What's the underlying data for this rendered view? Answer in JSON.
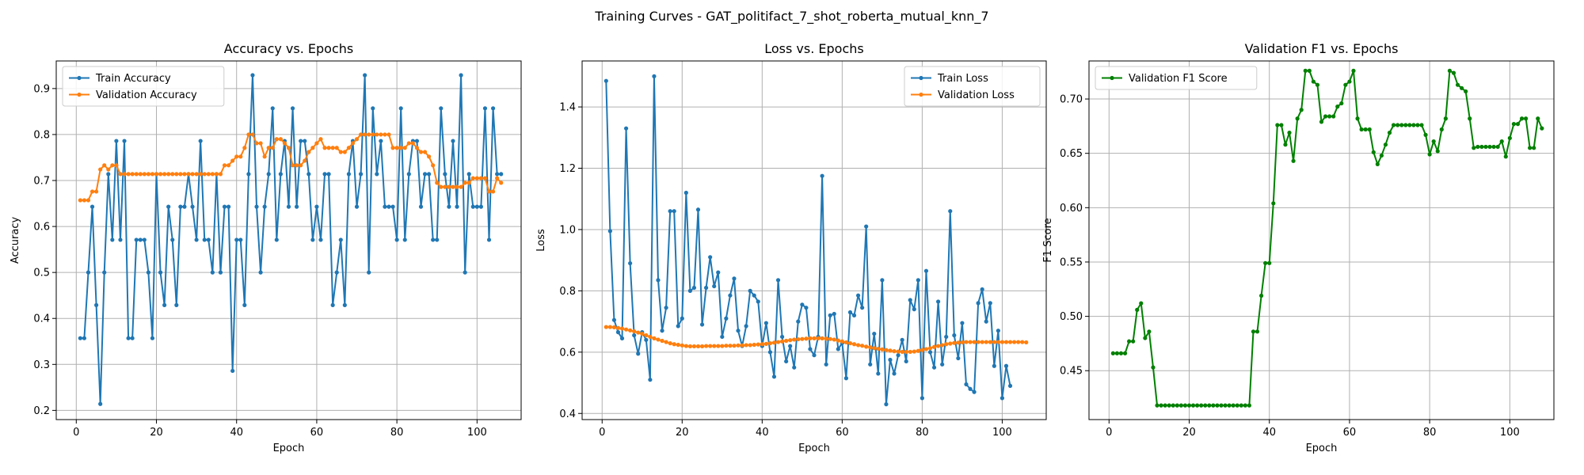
{
  "figure_title": "Training Curves - GAT_politifact_7_shot_roberta_mutual_knn_7",
  "colors": {
    "blue": "#1f77b4",
    "orange": "#ff7f0e",
    "green": "#008000",
    "grid": "#b0b0b0"
  },
  "chart_data": [
    {
      "type": "line",
      "title": "Accuracy vs. Epochs",
      "xlabel": "Epoch",
      "ylabel": "Accuracy",
      "xlim": [
        -5,
        111
      ],
      "ylim": [
        0.18,
        0.96
      ],
      "xticks": [
        0,
        20,
        40,
        60,
        80,
        100
      ],
      "yticks": [
        0.2,
        0.3,
        0.4,
        0.5,
        0.6,
        0.7,
        0.8,
        0.9
      ],
      "ytick_labels": [
        "0.2",
        "0.3",
        "0.4",
        "0.5",
        "0.6",
        "0.7",
        "0.8",
        "0.9"
      ],
      "grid": true,
      "legend": "upper left",
      "x_start": 1,
      "series": [
        {
          "name": "Train Accuracy",
          "color": "#1f77b4",
          "values": [
            0.357,
            0.357,
            0.5,
            0.643,
            0.429,
            0.214,
            0.5,
            0.714,
            0.571,
            0.786,
            0.571,
            0.786,
            0.357,
            0.357,
            0.571,
            0.571,
            0.571,
            0.5,
            0.357,
            0.714,
            0.5,
            0.429,
            0.643,
            0.571,
            0.429,
            0.643,
            0.643,
            0.714,
            0.643,
            0.571,
            0.786,
            0.571,
            0.571,
            0.5,
            0.714,
            0.5,
            0.643,
            0.643,
            0.286,
            0.571,
            0.571,
            0.429,
            0.714,
            0.929,
            0.643,
            0.5,
            0.643,
            0.714,
            0.857,
            0.571,
            0.714,
            0.786,
            0.643,
            0.857,
            0.643,
            0.786,
            0.786,
            0.714,
            0.571,
            0.643,
            0.571,
            0.714,
            0.714,
            0.429,
            0.5,
            0.571,
            0.429,
            0.714,
            0.786,
            0.643,
            0.714,
            0.929,
            0.5,
            0.857,
            0.714,
            0.786,
            0.643,
            0.643,
            0.643,
            0.571,
            0.857,
            0.571,
            0.714,
            0.786,
            0.786,
            0.643,
            0.714,
            0.714,
            0.571,
            0.571,
            0.857,
            0.714,
            0.643,
            0.786,
            0.643,
            0.929,
            0.5,
            0.714,
            0.643,
            0.643,
            0.643,
            0.857,
            0.571,
            0.857,
            0.714,
            0.714
          ]
        },
        {
          "name": "Validation Accuracy",
          "color": "#ff7f0e",
          "values": [
            0.657,
            0.657,
            0.657,
            0.676,
            0.676,
            0.724,
            0.733,
            0.724,
            0.733,
            0.733,
            0.714,
            0.714,
            0.714,
            0.714,
            0.714,
            0.714,
            0.714,
            0.714,
            0.714,
            0.714,
            0.714,
            0.714,
            0.714,
            0.714,
            0.714,
            0.714,
            0.714,
            0.714,
            0.714,
            0.714,
            0.714,
            0.714,
            0.714,
            0.714,
            0.714,
            0.714,
            0.733,
            0.733,
            0.743,
            0.752,
            0.752,
            0.771,
            0.8,
            0.8,
            0.781,
            0.781,
            0.752,
            0.771,
            0.771,
            0.79,
            0.79,
            0.781,
            0.771,
            0.733,
            0.733,
            0.733,
            0.743,
            0.762,
            0.771,
            0.781,
            0.79,
            0.771,
            0.771,
            0.771,
            0.771,
            0.762,
            0.762,
            0.771,
            0.781,
            0.79,
            0.8,
            0.8,
            0.8,
            0.8,
            0.8,
            0.8,
            0.8,
            0.8,
            0.771,
            0.771,
            0.771,
            0.771,
            0.781,
            0.781,
            0.771,
            0.762,
            0.762,
            0.752,
            0.733,
            0.695,
            0.686,
            0.686,
            0.686,
            0.686,
            0.686,
            0.686,
            0.695,
            0.695,
            0.705,
            0.705,
            0.705,
            0.705,
            0.676,
            0.676,
            0.705,
            0.695
          ]
        }
      ]
    },
    {
      "type": "line",
      "title": "Loss vs. Epochs",
      "xlabel": "Epoch",
      "ylabel": "Loss",
      "xlim": [
        -5,
        111
      ],
      "ylim": [
        0.38,
        1.55
      ],
      "xticks": [
        0,
        20,
        40,
        60,
        80,
        100
      ],
      "yticks": [
        0.4,
        0.6,
        0.8,
        1.0,
        1.2,
        1.4
      ],
      "ytick_labels": [
        "0.4",
        "0.6",
        "0.8",
        "1.0",
        "1.2",
        "1.4"
      ],
      "grid": true,
      "legend": "upper right",
      "x_start": 1,
      "series": [
        {
          "name": "Train Loss",
          "color": "#1f77b4",
          "values": [
            1.485,
            0.995,
            0.705,
            0.665,
            0.645,
            1.33,
            0.89,
            0.655,
            0.595,
            0.665,
            0.64,
            0.51,
            1.5,
            0.835,
            0.67,
            0.745,
            1.06,
            1.06,
            0.685,
            0.71,
            1.12,
            0.8,
            0.81,
            1.065,
            0.69,
            0.81,
            0.91,
            0.815,
            0.86,
            0.65,
            0.71,
            0.785,
            0.84,
            0.67,
            0.62,
            0.685,
            0.8,
            0.785,
            0.765,
            0.62,
            0.695,
            0.6,
            0.52,
            0.835,
            0.65,
            0.57,
            0.62,
            0.55,
            0.7,
            0.755,
            0.745,
            0.61,
            0.59,
            0.65,
            1.175,
            0.56,
            0.72,
            0.725,
            0.61,
            0.63,
            0.515,
            0.73,
            0.72,
            0.785,
            0.745,
            1.01,
            0.56,
            0.66,
            0.53,
            0.835,
            0.43,
            0.575,
            0.53,
            0.59,
            0.64,
            0.57,
            0.77,
            0.74,
            0.835,
            0.45,
            0.865,
            0.6,
            0.55,
            0.765,
            0.56,
            0.65,
            1.06,
            0.655,
            0.58,
            0.695,
            0.495,
            0.48,
            0.47,
            0.76,
            0.805,
            0.7,
            0.76,
            0.555,
            0.67,
            0.45,
            0.555,
            0.49
          ]
        },
        {
          "name": "Validation Loss",
          "color": "#ff7f0e",
          "values": [
            0.682,
            0.682,
            0.681,
            0.679,
            0.677,
            0.674,
            0.671,
            0.668,
            0.664,
            0.66,
            0.655,
            0.65,
            0.645,
            0.641,
            0.637,
            0.633,
            0.629,
            0.626,
            0.624,
            0.622,
            0.62,
            0.619,
            0.619,
            0.619,
            0.619,
            0.62,
            0.62,
            0.62,
            0.62,
            0.62,
            0.621,
            0.621,
            0.621,
            0.622,
            0.622,
            0.623,
            0.623,
            0.624,
            0.625,
            0.626,
            0.627,
            0.629,
            0.631,
            0.633,
            0.635,
            0.637,
            0.639,
            0.641,
            0.642,
            0.643,
            0.644,
            0.645,
            0.645,
            0.645,
            0.645,
            0.644,
            0.643,
            0.641,
            0.638,
            0.635,
            0.632,
            0.629,
            0.626,
            0.623,
            0.621,
            0.618,
            0.616,
            0.613,
            0.611,
            0.609,
            0.607,
            0.605,
            0.603,
            0.602,
            0.601,
            0.601,
            0.601,
            0.602,
            0.604,
            0.607,
            0.61,
            0.613,
            0.617,
            0.62,
            0.623,
            0.626,
            0.628,
            0.63,
            0.631,
            0.632,
            0.633,
            0.633,
            0.633,
            0.633,
            0.633,
            0.633,
            0.633,
            0.633,
            0.633,
            0.633,
            0.633,
            0.633,
            0.633,
            0.633,
            0.633,
            0.632
          ]
        }
      ]
    },
    {
      "type": "line",
      "title": "Validation F1 vs. Epochs",
      "xlabel": "Epoch",
      "ylabel": "F1 Score",
      "xlim": [
        -5,
        111
      ],
      "ylim": [
        0.405,
        0.735
      ],
      "xticks": [
        0,
        20,
        40,
        60,
        80,
        100
      ],
      "yticks": [
        0.45,
        0.5,
        0.55,
        0.6,
        0.65,
        0.7
      ],
      "ytick_labels": [
        "0.45",
        "0.50",
        "0.55",
        "0.60",
        "0.65",
        "0.70"
      ],
      "grid": true,
      "legend": "upper left",
      "x_start": 1,
      "series": [
        {
          "name": "Validation F1 Score",
          "color": "#008000",
          "values": [
            0.466,
            0.466,
            0.466,
            0.466,
            0.477,
            0.477,
            0.506,
            0.512,
            0.48,
            0.486,
            0.453,
            0.418,
            0.418,
            0.418,
            0.418,
            0.418,
            0.418,
            0.418,
            0.418,
            0.418,
            0.418,
            0.418,
            0.418,
            0.418,
            0.418,
            0.418,
            0.418,
            0.418,
            0.418,
            0.418,
            0.418,
            0.418,
            0.418,
            0.418,
            0.418,
            0.486,
            0.486,
            0.519,
            0.549,
            0.549,
            0.604,
            0.676,
            0.676,
            0.658,
            0.669,
            0.643,
            0.682,
            0.69,
            0.726,
            0.726,
            0.716,
            0.713,
            0.679,
            0.684,
            0.684,
            0.684,
            0.693,
            0.696,
            0.713,
            0.716,
            0.726,
            0.682,
            0.672,
            0.672,
            0.672,
            0.651,
            0.64,
            0.648,
            0.658,
            0.669,
            0.676,
            0.676,
            0.676,
            0.676,
            0.676,
            0.676,
            0.676,
            0.676,
            0.667,
            0.649,
            0.661,
            0.652,
            0.672,
            0.682,
            0.726,
            0.724,
            0.713,
            0.71,
            0.707,
            0.682,
            0.655,
            0.656,
            0.656,
            0.656,
            0.656,
            0.656,
            0.656,
            0.661,
            0.647,
            0.664,
            0.677,
            0.677,
            0.682,
            0.682,
            0.655,
            0.655,
            0.682,
            0.673
          ]
        }
      ]
    }
  ]
}
